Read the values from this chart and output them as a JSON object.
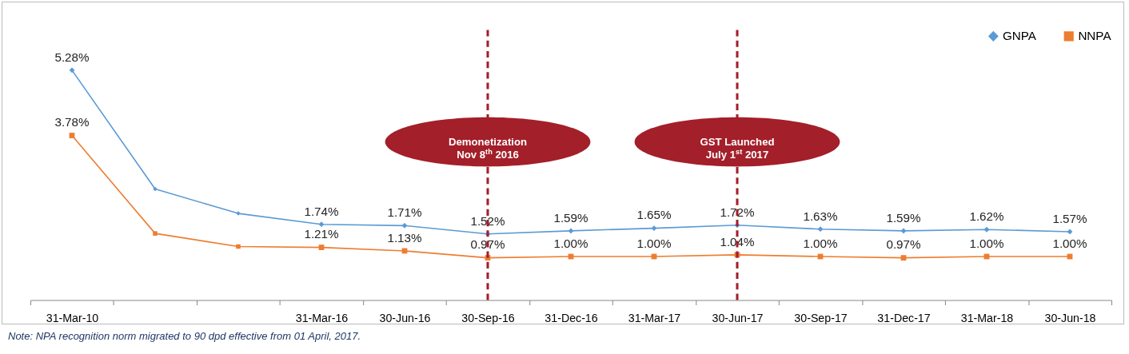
{
  "chart_data": {
    "type": "line",
    "categories": [
      "31-Mar-10",
      null,
      null,
      "31-Mar-16",
      "30-Jun-16",
      "30-Sep-16",
      "31-Dec-16",
      "31-Mar-17",
      "30-Jun-17",
      "30-Sep-17",
      "31-Dec-17",
      "31-Mar-18",
      "30-Jun-18"
    ],
    "series": [
      {
        "name": "GNPA",
        "color": "#5b9bd5",
        "marker": "diamond",
        "values": [
          5.28,
          2.55,
          1.99,
          1.74,
          1.71,
          1.52,
          1.59,
          1.65,
          1.72,
          1.63,
          1.59,
          1.62,
          1.57
        ],
        "value_labels": [
          "5.28%",
          null,
          null,
          "1.74%",
          "1.71%",
          "1.52%",
          "1.59%",
          "1.65%",
          "1.72%",
          "1.63%",
          "1.59%",
          "1.62%",
          "1.57%"
        ]
      },
      {
        "name": "NNPA",
        "color": "#ed7d31",
        "marker": "square",
        "values": [
          3.78,
          1.53,
          1.23,
          1.21,
          1.13,
          0.97,
          1.0,
          1.0,
          1.04,
          1.0,
          0.97,
          1.0,
          1.0
        ],
        "value_labels": [
          "3.78%",
          null,
          null,
          "1.21%",
          "1.13%",
          "0.97%",
          "1.00%",
          "1.00%",
          "1.04%",
          "1.00%",
          "0.97%",
          "1.00%",
          "1.00%"
        ]
      }
    ],
    "ref_lines": [
      {
        "axis": "x",
        "value": "30-Sep-16",
        "label": "Demonetization\nNov 8$^{th}$ 2016",
        "color": "#a31f2a",
        "line_style": "dashed"
      },
      {
        "axis": "x",
        "value": "30-Jun-17",
        "label": "GST Launched\nJuly 1$^{st}$ 2017",
        "color": "#a31f2a",
        "line_style": "dashed"
      }
    ],
    "legend": "top right",
    "annotations": [
      "Note: NPA recognition norm migrated to 90 dpd effective from 01 April, 2017."
    ]
  }
}
